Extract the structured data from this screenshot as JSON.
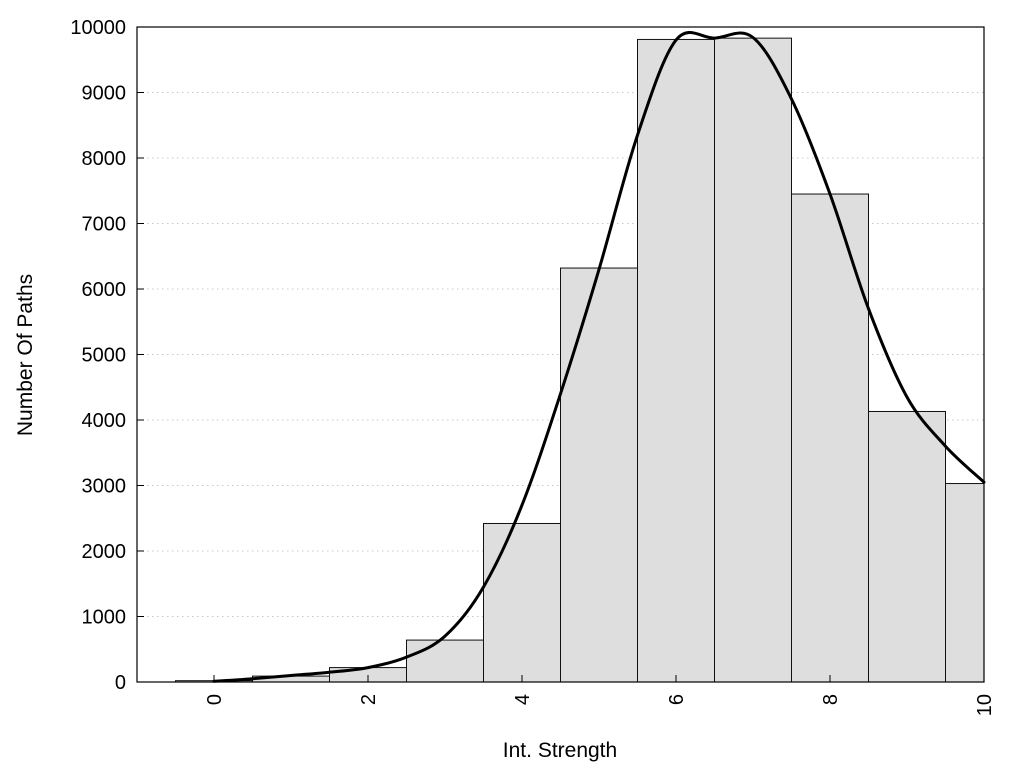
{
  "chart_data": {
    "type": "bar",
    "xlabel": "Int. Strength",
    "ylabel": "Number Of Paths",
    "xlim": [
      -1,
      10
    ],
    "ylim": [
      0,
      10000
    ],
    "x_ticks": [
      0,
      2,
      4,
      6,
      8,
      10
    ],
    "y_ticks": [
      0,
      1000,
      2000,
      3000,
      4000,
      5000,
      6000,
      7000,
      8000,
      9000,
      10000
    ],
    "x_tick_labels": [
      "0",
      "2",
      "4",
      "6",
      "8",
      "10"
    ],
    "y_tick_labels": [
      "0",
      "1000",
      "2000",
      "3000",
      "4000",
      "5000",
      "6000",
      "7000",
      "8000",
      "9000",
      "10000"
    ],
    "grid": "horizontal dotted",
    "bins": [
      {
        "x": 0,
        "value": 20
      },
      {
        "x": 1,
        "value": 90
      },
      {
        "x": 2,
        "value": 220
      },
      {
        "x": 3,
        "value": 640
      },
      {
        "x": 4,
        "value": 2420
      },
      {
        "x": 5,
        "value": 6320
      },
      {
        "x": 6,
        "value": 9810
      },
      {
        "x": 7,
        "value": 9830
      },
      {
        "x": 8,
        "value": 7450
      },
      {
        "x": 9,
        "value": 4130
      },
      {
        "x": 10,
        "value": 3030
      }
    ],
    "curve": {
      "x": [
        0,
        0.5,
        1,
        1.5,
        2,
        2.5,
        3,
        3.5,
        4,
        4.5,
        5,
        5.5,
        6,
        6.5,
        7,
        7.5,
        8,
        8.5,
        9,
        9.5,
        10
      ],
      "y": [
        10,
        50,
        100,
        150,
        220,
        380,
        700,
        1450,
        2700,
        4400,
        6300,
        8350,
        9800,
        9830,
        9840,
        8900,
        7450,
        5700,
        4350,
        3600,
        3050
      ]
    },
    "colors": {
      "bar_fill": "#dedede",
      "bar_edge": "#111111",
      "curve": "#000000"
    }
  }
}
